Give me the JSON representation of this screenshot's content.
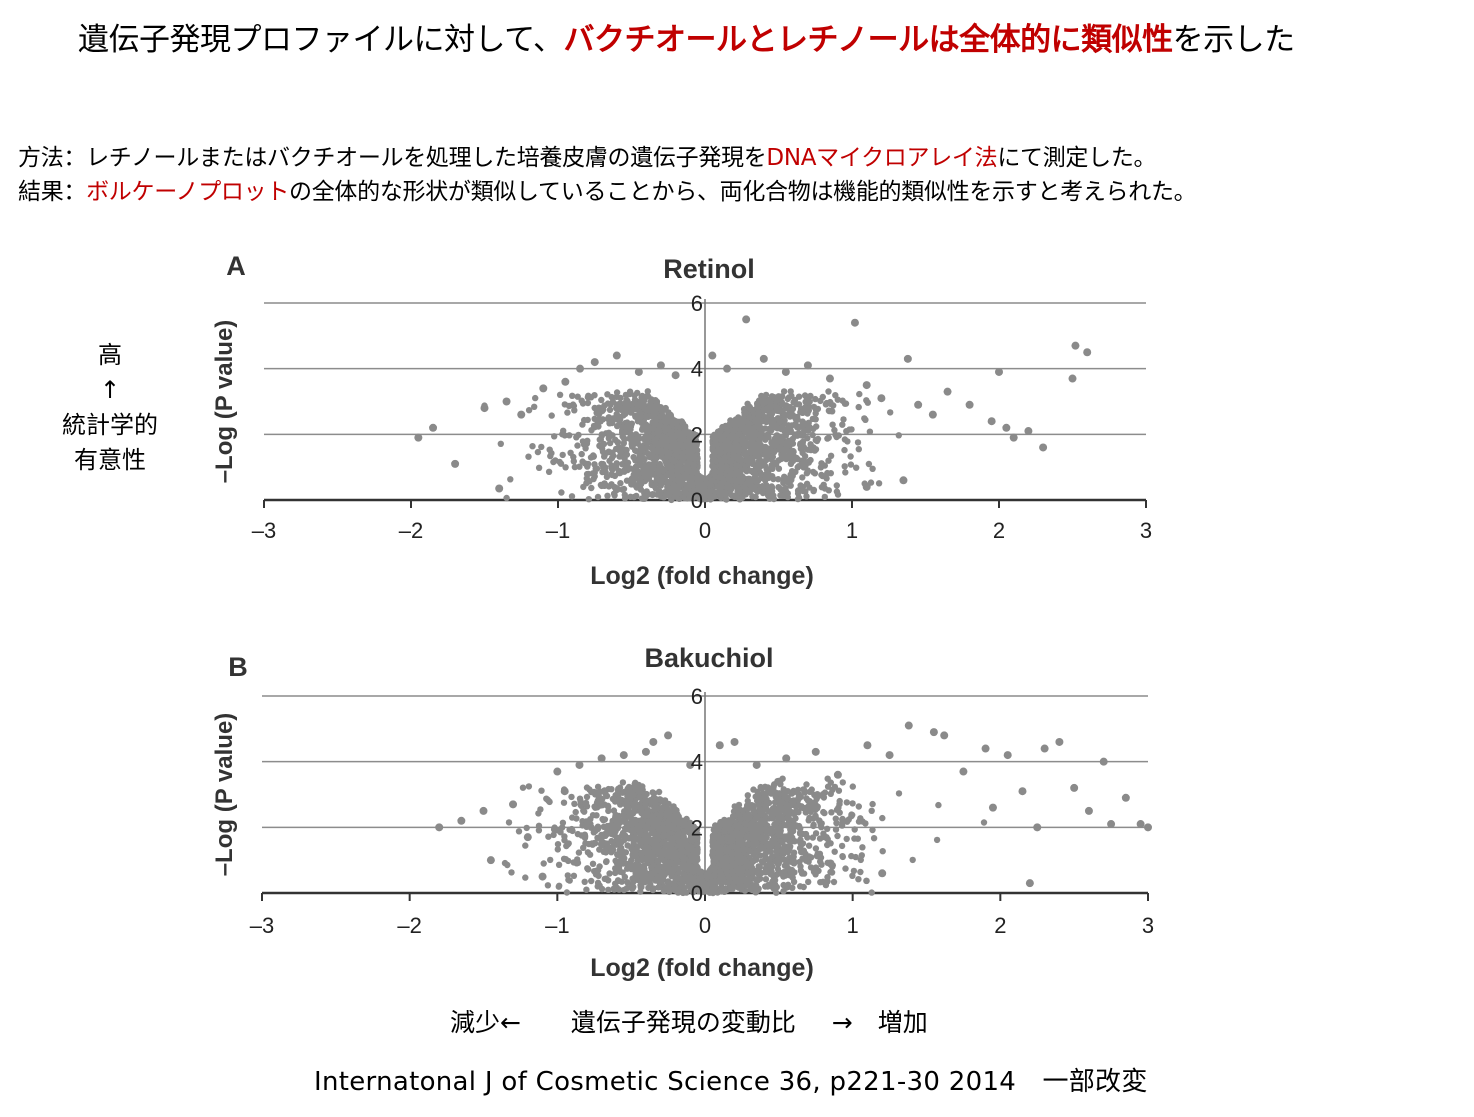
{
  "header": {
    "title_prefix": "遺伝子発現プロファイルに対して、",
    "title_emphasis": "バクチオールとレチノールは全体的に類似性",
    "title_suffix": "を示した",
    "accent_color": "#c00000"
  },
  "method": {
    "label": "方法：",
    "text_a": "レチノールまたはバクチオールを処理した培養皮膚の遺伝子発現を",
    "highlight": "DNAマイクロアレイ法",
    "text_b": "にて測定した。"
  },
  "result": {
    "label": "結果：",
    "highlight": "ボルケーノプロット",
    "text": "の全体的な形状が類似していることから、両化合物は機能的類似性を示すと考えられた。"
  },
  "side_note": {
    "line1": "高",
    "arrow": "↑",
    "line2": "統計学的",
    "line3": "有意性"
  },
  "chart_data": [
    {
      "type": "scatter",
      "panel_label": "A",
      "title": "Retinol",
      "xlabel": "Log2 (fold change)",
      "ylabel": "–Log (P value)",
      "xlim": [
        -3,
        3
      ],
      "ylim": [
        0,
        6
      ],
      "xticks": [
        "–3",
        "–2",
        "–1",
        "0",
        "1",
        "2",
        "3"
      ],
      "yticks": [
        "0",
        "2",
        "4",
        "6"
      ],
      "grid": true,
      "point_color": "#8a8a8a",
      "points": [
        [
          -1.95,
          1.9
        ],
        [
          -1.85,
          2.2
        ],
        [
          -1.7,
          1.1
        ],
        [
          -1.5,
          2.8
        ],
        [
          -1.4,
          0.35
        ],
        [
          -1.35,
          3.0
        ],
        [
          -1.25,
          2.6
        ],
        [
          -1.1,
          3.4
        ],
        [
          -0.95,
          3.6
        ],
        [
          -0.85,
          4.0
        ],
        [
          -0.75,
          4.2
        ],
        [
          -0.6,
          4.4
        ],
        [
          -0.45,
          3.9
        ],
        [
          -0.3,
          4.1
        ],
        [
          -0.2,
          3.8
        ],
        [
          0.05,
          4.4
        ],
        [
          0.15,
          4.0
        ],
        [
          0.28,
          5.5
        ],
        [
          0.4,
          4.3
        ],
        [
          0.55,
          3.9
        ],
        [
          0.7,
          4.1
        ],
        [
          0.85,
          3.7
        ],
        [
          1.02,
          5.4
        ],
        [
          1.1,
          3.5
        ],
        [
          1.2,
          3.1
        ],
        [
          1.38,
          4.3
        ],
        [
          1.45,
          2.9
        ],
        [
          1.55,
          2.6
        ],
        [
          1.65,
          3.3
        ],
        [
          1.8,
          2.9
        ],
        [
          1.95,
          2.4
        ],
        [
          2.0,
          3.9
        ],
        [
          2.05,
          2.2
        ],
        [
          2.1,
          1.9
        ],
        [
          2.2,
          2.1
        ],
        [
          2.3,
          1.6
        ],
        [
          2.5,
          3.7
        ],
        [
          2.52,
          4.7
        ],
        [
          2.6,
          4.5
        ],
        [
          1.35,
          0.6
        ],
        [
          1.1,
          0.4
        ],
        [
          -0.1,
          0.15
        ]
      ],
      "cloud": {
        "x_spread": 0.95,
        "peak": 3.4
      }
    },
    {
      "type": "scatter",
      "panel_label": "B",
      "title": "Bakuchiol",
      "xlabel": "Log2 (fold change)",
      "ylabel": "–Log (P value)",
      "xlim": [
        -3,
        3
      ],
      "ylim": [
        0,
        6
      ],
      "xticks": [
        "–3",
        "–2",
        "–1",
        "0",
        "1",
        "2",
        "3"
      ],
      "yticks": [
        "0",
        "2",
        "4",
        "6"
      ],
      "grid": true,
      "point_color": "#8a8a8a",
      "points": [
        [
          -1.8,
          2.0
        ],
        [
          -1.65,
          2.2
        ],
        [
          -1.5,
          2.5
        ],
        [
          -1.45,
          1.0
        ],
        [
          -1.3,
          2.7
        ],
        [
          -1.2,
          1.7
        ],
        [
          -1.1,
          0.5
        ],
        [
          -1.0,
          3.7
        ],
        [
          -0.95,
          3.1
        ],
        [
          -0.85,
          3.9
        ],
        [
          -0.7,
          4.1
        ],
        [
          -0.55,
          4.2
        ],
        [
          -0.4,
          4.3
        ],
        [
          -0.35,
          4.6
        ],
        [
          -0.25,
          4.8
        ],
        [
          -0.1,
          3.9
        ],
        [
          0.1,
          4.5
        ],
        [
          0.2,
          4.6
        ],
        [
          0.35,
          3.9
        ],
        [
          0.55,
          4.1
        ],
        [
          0.75,
          4.3
        ],
        [
          0.9,
          3.6
        ],
        [
          1.1,
          4.5
        ],
        [
          1.25,
          4.2
        ],
        [
          1.38,
          5.1
        ],
        [
          1.55,
          4.9
        ],
        [
          1.62,
          4.8
        ],
        [
          1.75,
          3.7
        ],
        [
          1.9,
          4.4
        ],
        [
          1.95,
          2.6
        ],
        [
          2.05,
          4.2
        ],
        [
          2.15,
          3.1
        ],
        [
          2.25,
          2.0
        ],
        [
          2.3,
          4.4
        ],
        [
          2.4,
          4.6
        ],
        [
          2.5,
          3.2
        ],
        [
          2.6,
          2.5
        ],
        [
          2.7,
          4.0
        ],
        [
          2.75,
          2.1
        ],
        [
          2.85,
          2.9
        ],
        [
          2.95,
          2.1
        ],
        [
          3.0,
          2.0
        ],
        [
          2.2,
          0.3
        ],
        [
          1.2,
          0.6
        ],
        [
          0.85,
          0.9
        ],
        [
          -0.2,
          0.1
        ]
      ],
      "cloud": {
        "x_spread": 1.05,
        "peak": 3.5
      }
    }
  ],
  "axis_caption": {
    "decrease": "減少←",
    "middle": "遺伝子発現の変動比",
    "increase": "→　増加"
  },
  "reference": "Internatonal J of Cosmetic Science 36, p221-30 2014　一部改変"
}
